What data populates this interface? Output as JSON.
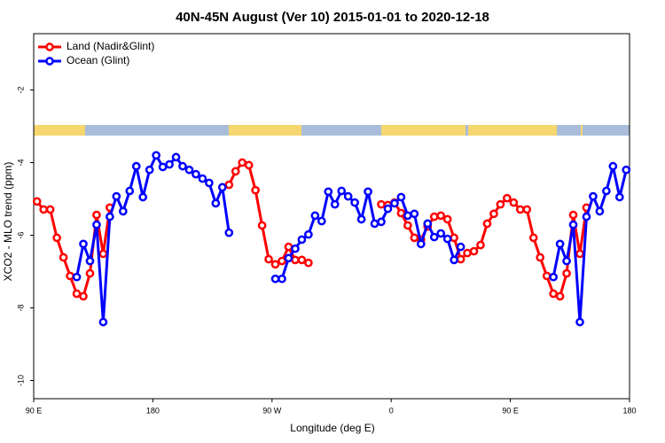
{
  "chart_data": {
    "type": "line",
    "title": "40N-45N August (Ver 10)   2015-01-01 to 2020-12-18",
    "xlabel": "Longitude (deg E)",
    "ylabel": "XCO2 - MLO trend (ppm)",
    "x": [
      92.5,
      97.5,
      102.5,
      107.5,
      112.5,
      117.5,
      122.5,
      127.5,
      132.5,
      137.5,
      142.5,
      147.5,
      152.5,
      157.5,
      162.5,
      167.5,
      172.5,
      177.5,
      182.5,
      187.5,
      192.5,
      197.5,
      202.5,
      207.5,
      212.5,
      217.5,
      222.5,
      227.5,
      232.5,
      237.5,
      242.5,
      247.5,
      252.5,
      257.5,
      262.5,
      267.5,
      272.5,
      277.5,
      282.5,
      287.5,
      292.5,
      297.5,
      302.5,
      307.5,
      312.5,
      317.5,
      322.5,
      327.5,
      332.5,
      337.5,
      342.5,
      347.5,
      352.5,
      357.5,
      362.5,
      367.5,
      372.5,
      377.5,
      382.5,
      387.5,
      392.5,
      397.5,
      402.5,
      407.5,
      412.5,
      417.5,
      422.5,
      427.5,
      432.5,
      437.5,
      442.5,
      447.5,
      452.5,
      457.5,
      462.5,
      467.5,
      472.5,
      477.5,
      482.5,
      487.5,
      492.5,
      497.5,
      502.5,
      507.5,
      512.5,
      517.5,
      522.5,
      527.5,
      532.5,
      537.5
    ],
    "series": [
      {
        "name": "Land (Nadir&Glint)",
        "color": "#ff0000",
        "values": [
          -5.07,
          -5.29,
          -5.29,
          -6.07,
          -6.61,
          -7.12,
          -7.61,
          -7.68,
          -7.05,
          -5.44,
          -6.51,
          -5.24,
          null,
          null,
          null,
          null,
          null,
          null,
          null,
          null,
          null,
          null,
          null,
          null,
          null,
          null,
          null,
          null,
          null,
          -4.61,
          -4.24,
          -4.0,
          -4.07,
          -4.76,
          -5.73,
          -6.66,
          -6.8,
          -6.71,
          -6.32,
          -6.68,
          -6.68,
          -6.76,
          null,
          null,
          null,
          null,
          null,
          null,
          null,
          null,
          null,
          null,
          -5.15,
          -5.17,
          -5.1,
          -5.39,
          -5.73,
          -6.07,
          -6.12,
          -5.76,
          -5.49,
          -5.46,
          -5.56,
          -6.07,
          -6.66,
          -6.49,
          -6.44,
          -6.27,
          -5.68,
          -5.41,
          -5.15,
          -4.98,
          -5.1,
          -5.29,
          -5.29,
          -6.07,
          -6.61,
          -7.12,
          -7.61,
          -7.68,
          -7.05,
          -5.44,
          -6.51,
          -5.24,
          null,
          null,
          null,
          null,
          null,
          null
        ]
      },
      {
        "name": "Ocean (Glint)",
        "color": "#0000ff",
        "values": [
          null,
          null,
          null,
          null,
          null,
          null,
          -7.15,
          -6.24,
          -6.71,
          -5.71,
          -8.39,
          -5.49,
          -4.93,
          -5.34,
          -4.78,
          -4.1,
          -4.95,
          -4.2,
          -3.8,
          -4.12,
          -4.05,
          -3.85,
          -4.1,
          -4.2,
          -4.32,
          -4.44,
          -4.56,
          -5.12,
          -4.68,
          -5.93,
          null,
          null,
          null,
          null,
          null,
          null,
          -7.2,
          -7.2,
          -6.63,
          -6.37,
          -6.12,
          -5.98,
          -5.46,
          -5.61,
          -4.8,
          -5.15,
          -4.78,
          -4.93,
          -5.1,
          -5.56,
          -4.8,
          -5.68,
          -5.63,
          -5.27,
          -5.12,
          -4.95,
          -5.46,
          -5.41,
          -6.24,
          -5.68,
          -6.05,
          -5.95,
          -6.1,
          -6.68,
          -6.32,
          null,
          null,
          null,
          null,
          null,
          null,
          null,
          null,
          null,
          null,
          null,
          null,
          null,
          -7.15,
          -6.24,
          -6.71,
          -5.71,
          -8.39,
          -5.49,
          -4.93,
          -5.34,
          -4.78,
          -4.1,
          -4.95,
          -4.2
        ]
      }
    ],
    "xlim": [
      90,
      540
    ],
    "ylim": [
      -10.5,
      -0.45
    ],
    "xticks": [
      {
        "value": 90,
        "label": "90 E"
      },
      180,
      {
        "value": 270,
        "label": "90 W"
      },
      {
        "value": 360,
        "label": "0"
      },
      {
        "value": 450,
        "label": "90 E"
      },
      {
        "value": 540,
        "label": "180"
      }
    ],
    "yticks": [
      -10,
      -8,
      -6,
      -4,
      -2
    ],
    "legend": "top-left"
  }
}
